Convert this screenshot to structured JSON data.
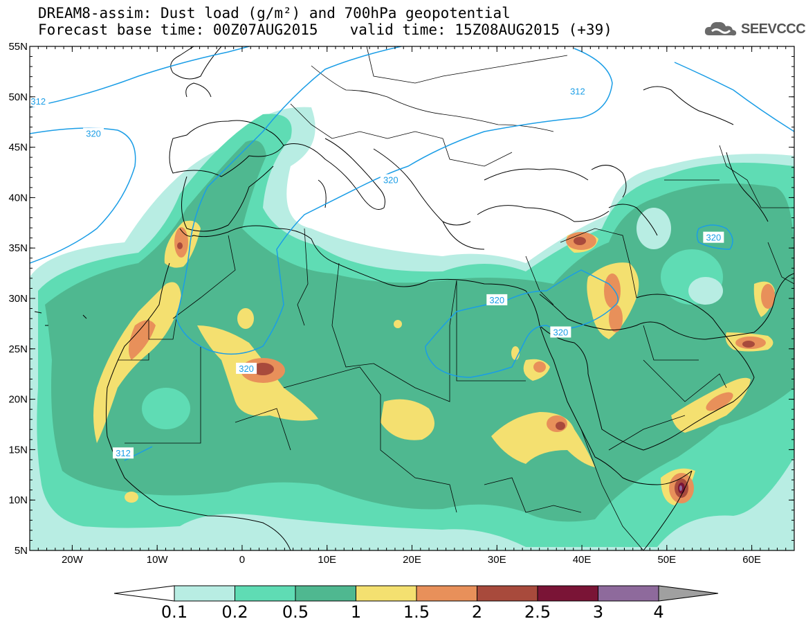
{
  "header": {
    "title_line1": "DREAM8-assim: Dust load (g/m²) and 700hPa geopotential",
    "base_time": "Forecast base time: 00Z07AUG2015",
    "valid_time": "valid time: 15Z08AUG2015 (+39)",
    "logo_text": "SEEVCCC"
  },
  "map": {
    "lon_range": [
      -25,
      65
    ],
    "lat_range": [
      5,
      55
    ],
    "lat_ticks": [
      {
        "value": 55,
        "label": "55N"
      },
      {
        "value": 50,
        "label": "50N"
      },
      {
        "value": 45,
        "label": "45N"
      },
      {
        "value": 40,
        "label": "40N"
      },
      {
        "value": 35,
        "label": "35N"
      },
      {
        "value": 30,
        "label": "30N"
      },
      {
        "value": 25,
        "label": "25N"
      },
      {
        "value": 20,
        "label": "20N"
      },
      {
        "value": 15,
        "label": "15N"
      },
      {
        "value": 10,
        "label": "10N"
      },
      {
        "value": 5,
        "label": "5N"
      }
    ],
    "lon_ticks": [
      {
        "value": -20,
        "label": "20W"
      },
      {
        "value": -10,
        "label": "10W"
      },
      {
        "value": 0,
        "label": "0"
      },
      {
        "value": 10,
        "label": "10E"
      },
      {
        "value": 20,
        "label": "20E"
      },
      {
        "value": 30,
        "label": "30E"
      },
      {
        "value": 40,
        "label": "40E"
      },
      {
        "value": 50,
        "label": "50E"
      },
      {
        "value": 60,
        "label": "60E"
      }
    ],
    "contour_labels": [
      {
        "text": "312",
        "lon": -24,
        "lat": 49.5
      },
      {
        "text": "320",
        "lon": -17.5,
        "lat": 46.3
      },
      {
        "text": "320",
        "lon": 17.5,
        "lat": 41.7
      },
      {
        "text": "312",
        "lon": 39.5,
        "lat": 50.5
      },
      {
        "text": "320",
        "lon": 55.5,
        "lat": 36.0
      },
      {
        "text": "320",
        "lon": 0.5,
        "lat": 23.0
      },
      {
        "text": "320",
        "lon": 30.0,
        "lat": 29.8
      },
      {
        "text": "320",
        "lon": 37.5,
        "lat": 26.6
      },
      {
        "text": "312",
        "lon": -14,
        "lat": 14.6
      }
    ]
  },
  "legend": {
    "colors": [
      "#b8ede3",
      "#5fdcb4",
      "#4fb890",
      "#f4e070",
      "#e8905a",
      "#a84a3c",
      "#7a1436",
      "#8e6a9c"
    ],
    "low_color": "#ffffff",
    "high_color": "#a0a0a0",
    "labels": [
      "0.1",
      "0.2",
      "0.5",
      "1",
      "1.5",
      "2",
      "2.5",
      "3",
      "4"
    ]
  }
}
